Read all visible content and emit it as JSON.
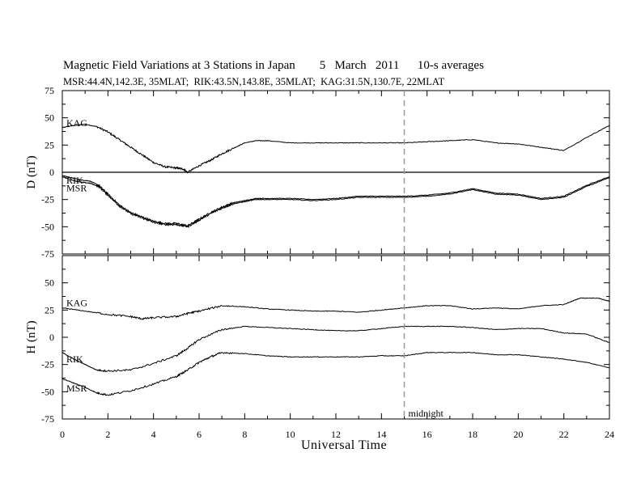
{
  "header": {
    "title": "Magnetic Field Variations at 3 Stations in Japan        5   March   2011      10-s averages",
    "subtitle": "MSR:44.4N,142.3E, 35MLAT;  RIK:43.5N,143.8E, 35MLAT;  KAG:31.5N,130.7E, 22MLAT"
  },
  "chart_data": {
    "type": "line",
    "xlabel": "Universal Time",
    "xlim": [
      0,
      24
    ],
    "x_ticks": [
      0,
      2,
      4,
      6,
      8,
      10,
      12,
      14,
      16,
      18,
      20,
      22,
      24
    ],
    "annotation": {
      "x": 15,
      "label": "midnight"
    },
    "panels": [
      {
        "ylabel": "D (nT)",
        "ylim": [
          -75,
          75
        ],
        "y_ticks": [
          75,
          50,
          25,
          0,
          -25,
          -50,
          -75
        ],
        "zero_line": true,
        "series": [
          {
            "name": "KAG",
            "x": [
              0,
              0.5,
              1,
              1.5,
              2,
              2.5,
              3,
              3.5,
              4,
              4.5,
              5,
              5.3,
              5.5,
              6,
              6.5,
              7,
              7.5,
              8,
              8.5,
              9,
              10,
              11,
              12,
              13,
              14,
              15,
              16,
              17,
              18,
              19,
              20,
              21,
              22,
              23,
              24
            ],
            "values": [
              41,
              43,
              44,
              42,
              37,
              30,
              23,
              16,
              9,
              5,
              4,
              3,
              0,
              6,
              11,
              17,
              22,
              27,
              29,
              29,
              27,
              27,
              27,
              27,
              27,
              27,
              28,
              29,
              30,
              27,
              26,
              23,
              20,
              32,
              43
            ]
          },
          {
            "name": "RIK",
            "x": [
              0,
              0.4,
              0.8,
              1.2,
              1.6,
              2,
              2.5,
              3,
              3.5,
              4,
              4.5,
              5,
              5.5,
              6,
              6.5,
              7,
              7.5,
              8,
              8.5,
              9,
              10,
              11,
              12,
              13,
              14,
              15,
              16,
              17,
              18,
              19,
              20,
              21,
              22,
              23,
              24
            ],
            "values": [
              -3,
              -5,
              -7,
              -8,
              -12,
              -20,
              -30,
              -37,
              -41,
              -45,
              -47,
              -47,
              -49,
              -43,
              -37,
              -32,
              -28,
              -26,
              -24,
              -24,
              -24,
              -25,
              -24,
              -22,
              -22,
              -22,
              -21,
              -19,
              -15,
              -19,
              -20,
              -24,
              -22,
              -12,
              -4
            ]
          },
          {
            "name": "MSR",
            "x": [
              0,
              0.4,
              0.8,
              1.2,
              1.6,
              2,
              2.5,
              3,
              3.5,
              4,
              4.5,
              5,
              5.5,
              6,
              6.5,
              7,
              7.5,
              8,
              8.5,
              9,
              10,
              11,
              12,
              13,
              14,
              15,
              16,
              17,
              18,
              19,
              20,
              21,
              22,
              23,
              24
            ],
            "values": [
              -4,
              -7,
              -9,
              -10,
              -13,
              -21,
              -31,
              -38,
              -42,
              -46,
              -48,
              -48,
              -50,
              -44,
              -38,
              -33,
              -29,
              -27,
              -25,
              -25,
              -25,
              -26,
              -25,
              -23,
              -23,
              -23,
              -22,
              -20,
              -16,
              -20,
              -21,
              -25,
              -23,
              -13,
              -5
            ]
          }
        ]
      },
      {
        "ylabel": "H (nT)",
        "ylim": [
          -75,
          75
        ],
        "y_ticks": [
          75,
          50,
          25,
          0,
          -25,
          -50,
          -75
        ],
        "zero_line": false,
        "series": [
          {
            "name": "KAG",
            "x": [
              0,
              1,
              2,
              3,
              3.5,
              4,
              5,
              5.5,
              6,
              7,
              8,
              9,
              10,
              11,
              12,
              13,
              14,
              15,
              16,
              17,
              18,
              19,
              20,
              21,
              22,
              22.7,
              23.5,
              24
            ],
            "values": [
              27,
              24,
              21,
              19,
              17,
              18,
              19,
              22,
              24,
              29,
              28,
              26,
              25,
              24,
              24,
              23,
              25,
              27,
              29,
              29,
              26,
              27,
              26,
              29,
              30,
              36,
              36,
              33
            ]
          },
          {
            "name": "RIK",
            "x": [
              0,
              0.5,
              1,
              1.5,
              2,
              3,
              4,
              5,
              5.5,
              6,
              7,
              8,
              9,
              10,
              11,
              12,
              13,
              14,
              15,
              16,
              17,
              18,
              19,
              20,
              21,
              22,
              23,
              24
            ],
            "values": [
              -14,
              -20,
              -25,
              -30,
              -31,
              -30,
              -24,
              -17,
              -10,
              -2,
              7,
              10,
              9,
              8,
              7,
              6,
              6,
              8,
              10,
              10,
              10,
              9,
              7,
              8,
              8,
              4,
              3,
              -5
            ]
          },
          {
            "name": "MSR",
            "x": [
              0,
              0.5,
              1,
              1.5,
              2,
              3,
              4,
              5,
              5.5,
              6,
              6.5,
              7,
              8,
              9,
              10,
              11,
              12,
              13,
              14,
              15,
              16,
              17,
              18,
              19,
              20,
              21,
              22,
              23,
              24
            ],
            "values": [
              -38,
              -42,
              -46,
              -51,
              -53,
              -49,
              -43,
              -36,
              -30,
              -23,
              -18,
              -14,
              -15,
              -17,
              -18,
              -18,
              -18,
              -18,
              -17,
              -17,
              -14,
              -14,
              -14,
              -16,
              -16,
              -18,
              -20,
              -23,
              -28
            ]
          }
        ]
      }
    ]
  }
}
